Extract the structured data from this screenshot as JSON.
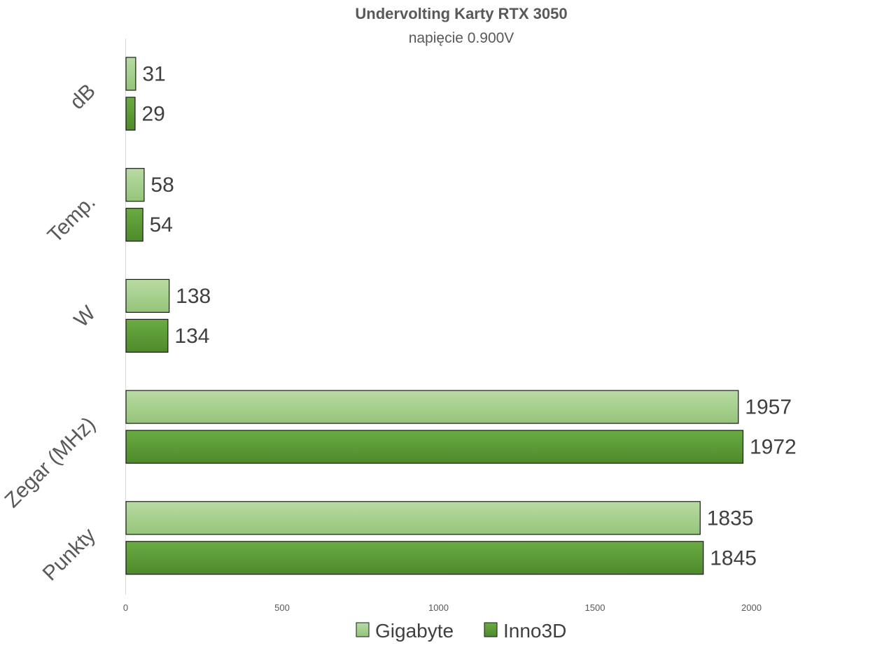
{
  "chart_data": {
    "type": "bar",
    "orientation": "horizontal",
    "title": "Undervolting Karty RTX 3050",
    "subtitle": "napięcie 0.900V",
    "categories": [
      "dB",
      "Temp.",
      "W",
      "Zegar (MHz)",
      "Punkty"
    ],
    "series": [
      {
        "name": "Gigabyte",
        "values": [
          31,
          58,
          138,
          1957,
          1835
        ],
        "color": "#a9d08e"
      },
      {
        "name": "Inno3D",
        "values": [
          29,
          54,
          134,
          1972,
          1845
        ],
        "color": "#5b9a35"
      }
    ],
    "xlim": [
      0,
      2000
    ],
    "xticks": [
      "0",
      "500",
      "1000",
      "1500",
      "2000"
    ],
    "grid": false,
    "legend_position": "bottom"
  }
}
